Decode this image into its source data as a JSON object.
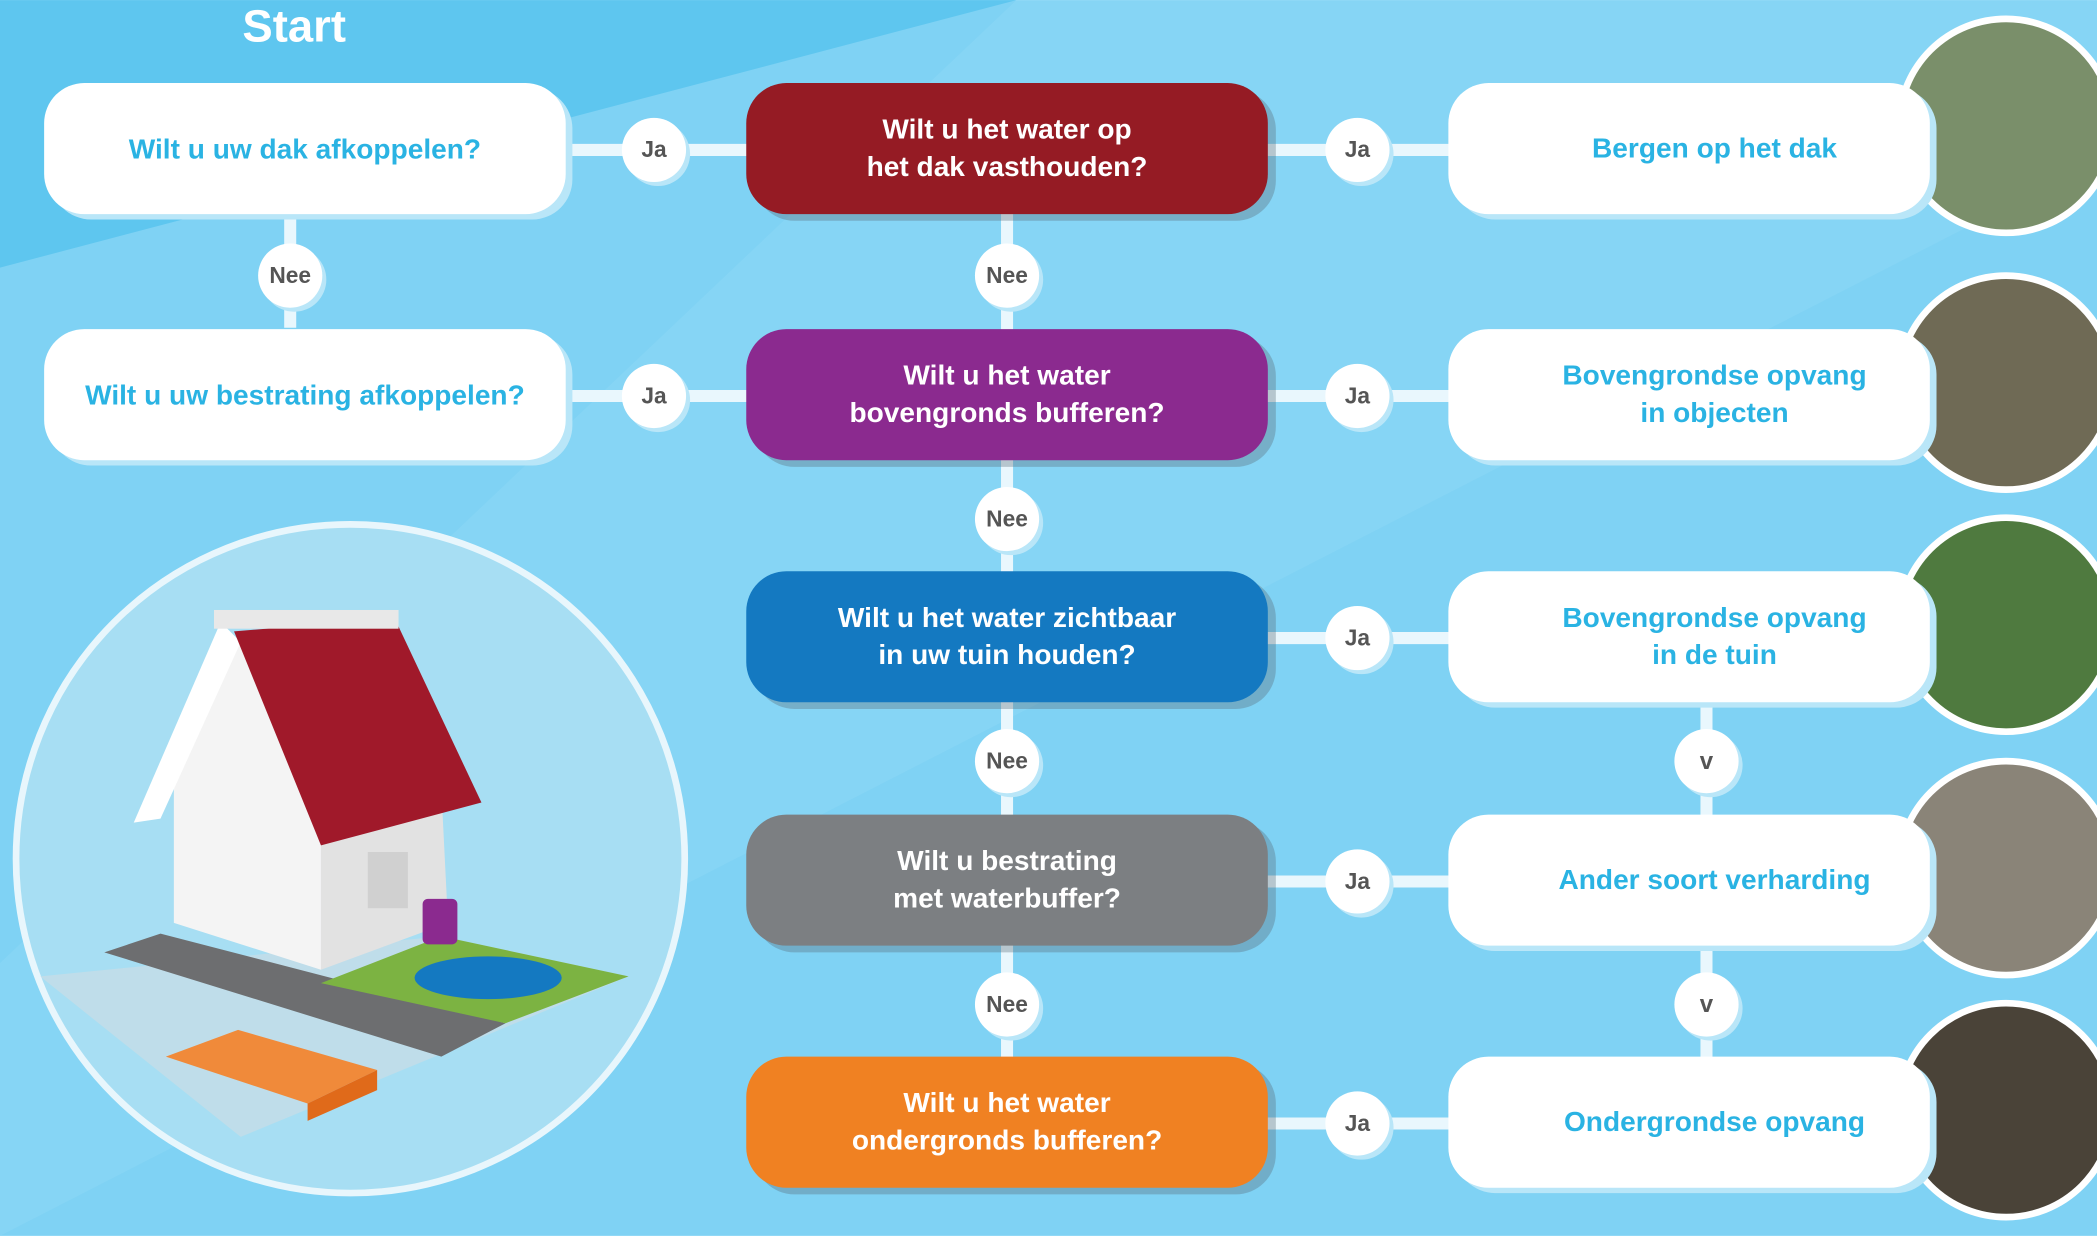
{
  "start": "Start",
  "questions_left": [
    {
      "text": "Wilt u uw dak afkoppelen?"
    },
    {
      "text": "Wilt u uw bestrating afkoppelen?"
    }
  ],
  "questions_center": [
    {
      "lines": [
        "Wilt u het water op",
        "het dak vasthouden?"
      ],
      "color": "#951b24"
    },
    {
      "lines": [
        "Wilt u het water",
        "bovengronds bufferen?"
      ],
      "color": "#8b2a8f"
    },
    {
      "lines": [
        "Wilt u het water zichtbaar",
        "in uw tuin houden?"
      ],
      "color": "#1479c1"
    },
    {
      "lines": [
        "Wilt u bestrating",
        "met waterbuffer?"
      ],
      "color": "#7c7f82"
    },
    {
      "lines": [
        "Wilt u het water",
        "ondergronds bufferen?"
      ],
      "color": "#f08122"
    }
  ],
  "outcomes": [
    {
      "lines": [
        "Bergen op het dak"
      ]
    },
    {
      "lines": [
        "Bovengrondse opvang",
        "in objecten"
      ]
    },
    {
      "lines": [
        "Bovengrondse opvang",
        "in de tuin"
      ]
    },
    {
      "lines": [
        "Ander soort verharding"
      ]
    },
    {
      "lines": [
        "Ondergrondse opvang"
      ]
    }
  ],
  "connectors": [
    {
      "label": "Ja"
    },
    {
      "label": "Ja"
    },
    {
      "label": "Nee"
    },
    {
      "label": "Ja"
    },
    {
      "label": "Ja"
    },
    {
      "label": "Ja"
    },
    {
      "label": "Ja"
    },
    {
      "label": "Ja"
    },
    {
      "label": "Nee"
    },
    {
      "label": "Nee"
    },
    {
      "label": "Nee"
    },
    {
      "label": "Nee"
    },
    {
      "label": "v"
    },
    {
      "label": "v"
    }
  ]
}
